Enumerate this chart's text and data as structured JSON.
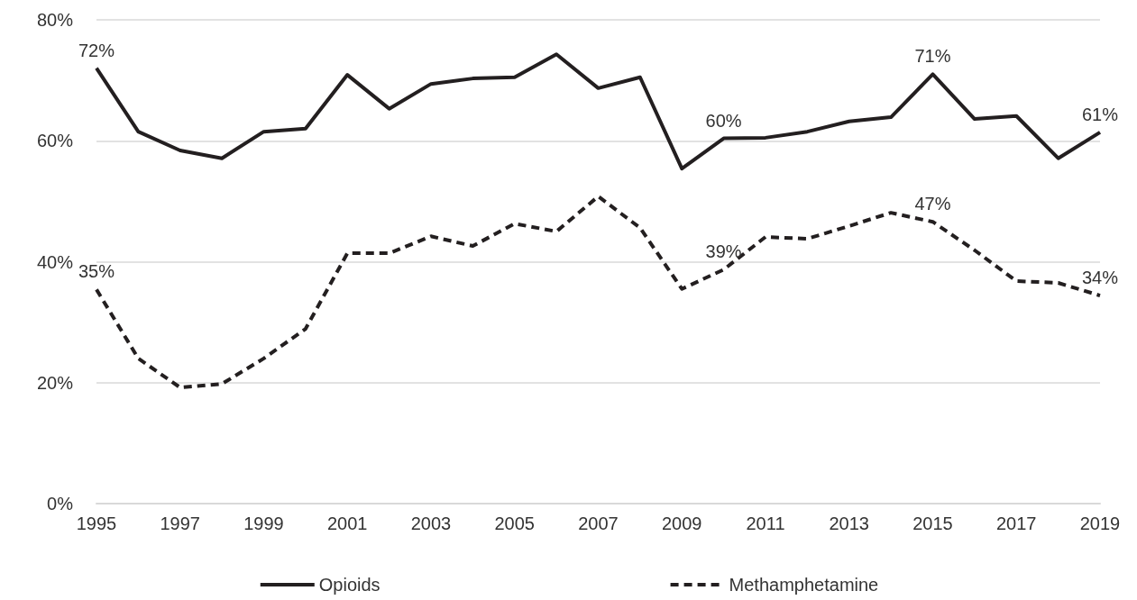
{
  "chart_data": {
    "type": "line",
    "x": [
      1995,
      1996,
      1997,
      1998,
      1999,
      2000,
      2001,
      2002,
      2003,
      2004,
      2005,
      2006,
      2007,
      2008,
      2009,
      2010,
      2011,
      2012,
      2013,
      2014,
      2015,
      2016,
      2017,
      2018,
      2019
    ],
    "xlim": [
      1995,
      2019
    ],
    "xticks": [
      1995,
      1997,
      1999,
      2001,
      2003,
      2005,
      2007,
      2009,
      2011,
      2013,
      2015,
      2017,
      2019
    ],
    "ylim": [
      0,
      80
    ],
    "yticks": [
      {
        "value": 0,
        "label": "0%"
      },
      {
        "value": 20,
        "label": "20%"
      },
      {
        "value": 40,
        "label": "40%"
      },
      {
        "value": 60,
        "label": "60%"
      },
      {
        "value": 80,
        "label": "80%"
      }
    ],
    "grid": "y",
    "legend": "bottom",
    "marker": "none",
    "series": [
      {
        "name": "Opioids",
        "color": "#231f20",
        "line_style": "solid",
        "values": [
          72,
          61.5,
          58.4,
          57.1,
          61.5,
          62,
          70.9,
          65.3,
          69.4,
          70.3,
          70.5,
          74.3,
          68.7,
          70.5,
          55.4,
          60.4,
          60.5,
          61.5,
          63.2,
          63.9,
          71,
          63.6,
          64.1,
          57.1,
          61.4
        ],
        "value_labels": [
          "72%",
          null,
          null,
          null,
          null,
          null,
          null,
          null,
          null,
          null,
          null,
          null,
          null,
          null,
          null,
          "60%",
          null,
          null,
          null,
          null,
          "71%",
          null,
          null,
          null,
          "61%"
        ]
      },
      {
        "name": "Methamphetamine",
        "color": "#231f20",
        "line_style": "dashed",
        "values": [
          35.4,
          24,
          19.2,
          19.8,
          24,
          28.9,
          41.4,
          41.4,
          44.2,
          42.6,
          46.3,
          45,
          50.8,
          45.6,
          35.5,
          38.7,
          44.1,
          43.8,
          45.9,
          48.1,
          46.6,
          41.9,
          36.8,
          36.5,
          34.4
        ],
        "value_labels": [
          "35%",
          null,
          null,
          null,
          null,
          null,
          null,
          null,
          null,
          null,
          null,
          null,
          null,
          null,
          null,
          "39%",
          null,
          null,
          null,
          null,
          "47%",
          null,
          null,
          null,
          "34%"
        ]
      }
    ]
  }
}
